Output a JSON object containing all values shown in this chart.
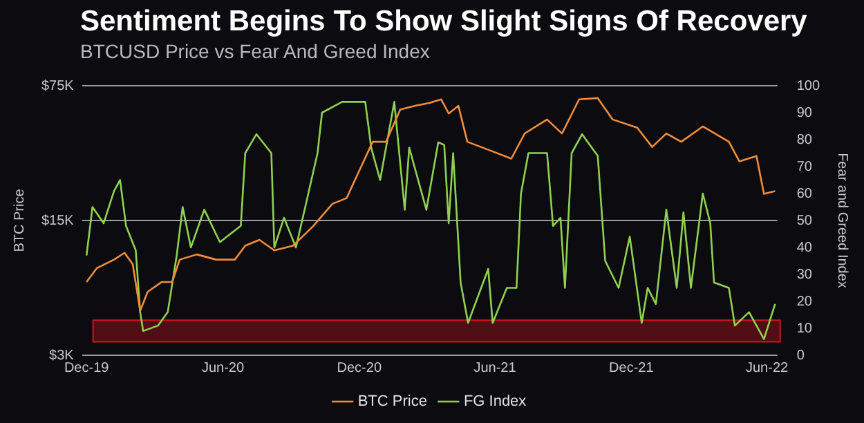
{
  "chart_data": {
    "type": "line",
    "title": "Sentiment Begins To Show Slight Signs Of Recovery",
    "subtitle": "BTCUSD Price vs Fear And Greed Index",
    "ylabel": "BTC Price",
    "y2label": "Fear and Greed Index",
    "log": "y",
    "grid": "y",
    "legend": "bottom",
    "xlim": [
      "2019-11-25",
      "2022-06-15"
    ],
    "xticks": [
      {
        "value": "2019-12-01",
        "label": "Dec-19"
      },
      {
        "value": "2020-06-01",
        "label": "Jun-20"
      },
      {
        "value": "2020-12-01",
        "label": "Dec-20"
      },
      {
        "value": "2021-06-01",
        "label": "Jun-21"
      },
      {
        "value": "2021-12-01",
        "label": "Dec-21"
      },
      {
        "value": "2022-06-01",
        "label": "Jun-22"
      }
    ],
    "ylim": [
      3000,
      75000
    ],
    "yticks": [
      {
        "value": 3000,
        "label": "$3K"
      },
      {
        "value": 15000,
        "label": "$15K"
      },
      {
        "value": 75000,
        "label": "$75K"
      }
    ],
    "y2lim": [
      0,
      100
    ],
    "y2ticks": [
      0,
      10,
      20,
      30,
      40,
      50,
      60,
      70,
      80,
      90,
      100
    ],
    "bands": [
      {
        "axis": "y2",
        "from": 5,
        "to": 13,
        "color": "#d0141e"
      }
    ],
    "series": [
      {
        "name": "BTC Price",
        "color": "#f28c3a",
        "x": [
          "2019-12-01",
          "2019-12-15",
          "2020-01-07",
          "2020-01-21",
          "2020-02-01",
          "2020-02-11",
          "2020-02-21",
          "2020-03-11",
          "2020-03-25",
          "2020-04-04",
          "2020-04-27",
          "2020-05-23",
          "2020-06-17",
          "2020-07-01",
          "2020-07-20",
          "2020-08-09",
          "2020-09-03",
          "2020-09-30",
          "2020-10-26",
          "2020-11-14",
          "2020-12-04",
          "2020-12-19",
          "2021-01-06",
          "2021-01-25",
          "2021-02-14",
          "2021-03-05",
          "2021-03-21",
          "2021-03-31",
          "2021-04-13",
          "2021-04-25",
          "2021-05-29",
          "2021-06-23",
          "2021-07-11",
          "2021-08-10",
          "2021-08-30",
          "2021-09-22",
          "2021-10-17",
          "2021-11-06",
          "2021-12-09",
          "2021-12-29",
          "2022-01-17",
          "2022-02-06",
          "2022-03-07",
          "2022-04-11",
          "2022-04-25",
          "2022-05-18",
          "2022-05-28",
          "2022-06-12"
        ],
        "values": [
          7200,
          8500,
          9400,
          10200,
          8900,
          5100,
          6400,
          7200,
          7200,
          9400,
          10000,
          9400,
          9400,
          11100,
          11900,
          10500,
          11100,
          14000,
          18300,
          19600,
          28800,
          38400,
          38400,
          56400,
          59000,
          61000,
          63700,
          53800,
          59000,
          38400,
          34200,
          31400,
          42400,
          50100,
          42400,
          63700,
          64700,
          50100,
          45400,
          36100,
          42400,
          38400,
          46100,
          38400,
          30400,
          32400,
          20600,
          21300
        ]
      },
      {
        "name": "FG Index",
        "color": "#8fd14f",
        "axis": "y2",
        "x": [
          "2019-12-01",
          "2019-12-09",
          "2019-12-24",
          "2020-01-07",
          "2020-01-15",
          "2020-01-23",
          "2020-02-05",
          "2020-02-11",
          "2020-02-15",
          "2020-03-06",
          "2020-03-19",
          "2020-03-31",
          "2020-04-08",
          "2020-04-19",
          "2020-05-07",
          "2020-05-28",
          "2020-06-25",
          "2020-07-01",
          "2020-07-16",
          "2020-08-05",
          "2020-08-09",
          "2020-08-22",
          "2020-09-07",
          "2020-09-22",
          "2020-10-06",
          "2020-10-12",
          "2020-11-08",
          "2020-12-09",
          "2020-12-17",
          "2020-12-29",
          "2021-01-17",
          "2021-01-31",
          "2021-02-06",
          "2021-03-01",
          "2021-03-17",
          "2021-03-25",
          "2021-03-31",
          "2021-04-06",
          "2021-04-16",
          "2021-04-26",
          "2021-05-23",
          "2021-05-29",
          "2021-06-17",
          "2021-06-30",
          "2021-07-06",
          "2021-07-16",
          "2021-08-10",
          "2021-08-18",
          "2021-08-28",
          "2021-09-03",
          "2021-09-12",
          "2021-09-26",
          "2021-10-17",
          "2021-10-27",
          "2021-11-14",
          "2021-11-29",
          "2021-12-15",
          "2021-12-23",
          "2022-01-03",
          "2022-01-17",
          "2022-01-31",
          "2022-02-09",
          "2022-02-19",
          "2022-03-07",
          "2022-03-17",
          "2022-03-22",
          "2022-04-11",
          "2022-04-19",
          "2022-05-08",
          "2022-05-28",
          "2022-06-12"
        ],
        "values": [
          37,
          55,
          49,
          61,
          65,
          48,
          39,
          16,
          9,
          11,
          16,
          37,
          55,
          40,
          54,
          42,
          48,
          75,
          82,
          75,
          40,
          51,
          40,
          58,
          75,
          90,
          94,
          94,
          77,
          65,
          94,
          54,
          77,
          54,
          79,
          78,
          49,
          75,
          27,
          12,
          32,
          12,
          25,
          25,
          60,
          75,
          75,
          48,
          51,
          25,
          75,
          82,
          74,
          35,
          25,
          44,
          12,
          25,
          19,
          54,
          25,
          53,
          25,
          60,
          49,
          27,
          25,
          11,
          16,
          6,
          19
        ]
      }
    ]
  }
}
